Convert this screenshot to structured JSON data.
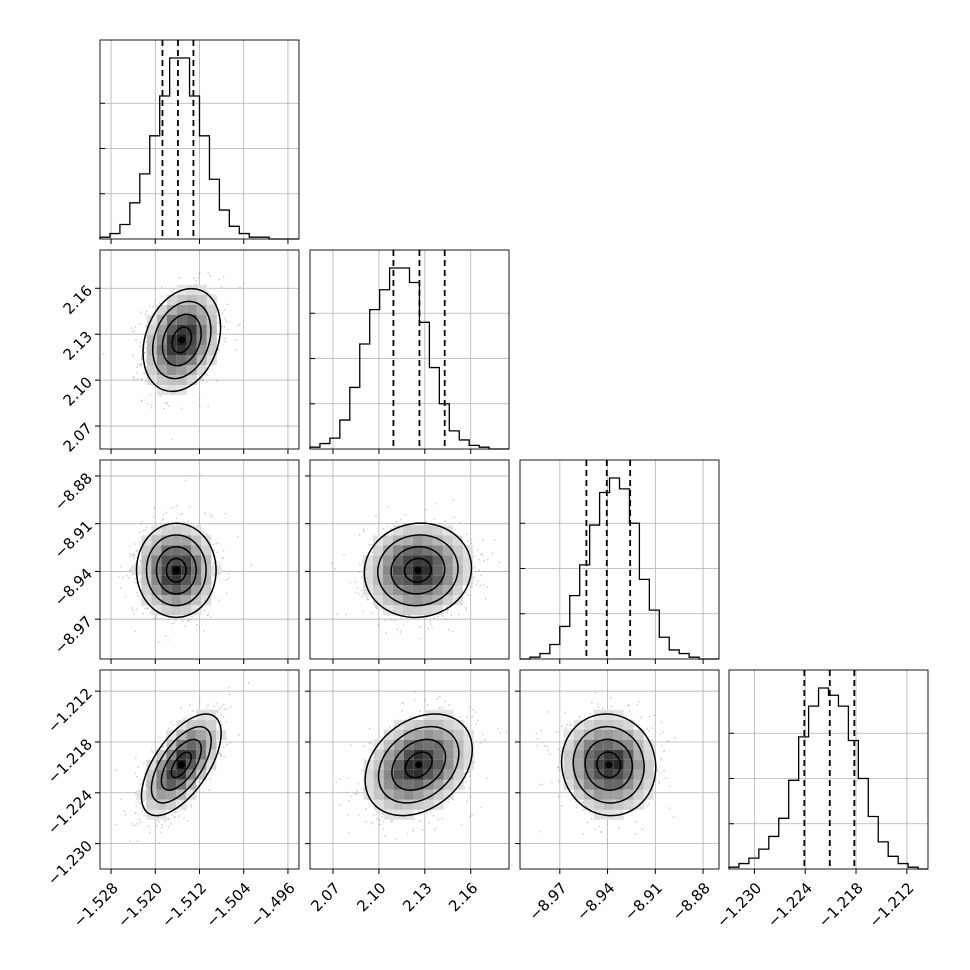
{
  "chart_data": {
    "type": "corner",
    "title": "",
    "parameters": [
      {
        "index": 0,
        "range": [
          -1.53,
          -1.494
        ],
        "ticks": [
          -1.528,
          -1.52,
          -1.512,
          -1.504,
          -1.496
        ],
        "tick_labels": [
          "−1.528",
          "−1.520",
          "−1.512",
          "−1.504",
          "−1.496"
        ],
        "quantiles": [
          -1.5187,
          -1.5159,
          -1.5131
        ],
        "hist_counts": [
          1,
          3,
          8,
          20,
          36,
          57,
          79,
          100,
          100,
          79,
          57,
          33,
          16,
          7,
          3,
          1,
          1,
          0,
          0,
          0
        ]
      },
      {
        "index": 1,
        "range": [
          2.055,
          2.185
        ],
        "ticks": [
          2.07,
          2.1,
          2.13,
          2.16
        ],
        "tick_labels": [
          "2.07",
          "2.10",
          "2.13",
          "2.16"
        ],
        "quantiles": [
          2.1095,
          2.1265,
          2.143
        ],
        "hist_counts": [
          1,
          3,
          6,
          16,
          34,
          58,
          77,
          88,
          100,
          100,
          92,
          70,
          45,
          25,
          10,
          5,
          2,
          1,
          0,
          0
        ]
      },
      {
        "index": 2,
        "range": [
          -8.995,
          -8.87
        ],
        "ticks": [
          -8.97,
          -8.94,
          -8.91,
          -8.88
        ],
        "tick_labels": [
          "−8.97",
          "−8.94",
          "−8.91",
          "−8.88"
        ],
        "quantiles": [
          -8.9533,
          -8.9405,
          -8.9258
        ],
        "hist_counts": [
          0,
          1,
          3,
          8,
          18,
          35,
          52,
          74,
          92,
          100,
          94,
          75,
          44,
          27,
          12,
          5,
          3,
          1,
          0,
          0
        ]
      },
      {
        "index": 3,
        "range": [
          -1.233,
          -1.2095
        ],
        "ticks": [
          -1.23,
          -1.224,
          -1.218,
          -1.212
        ],
        "tick_labels": [
          "−1.230",
          "−1.224",
          "−1.218",
          "−1.212"
        ],
        "quantiles": [
          -1.2241,
          -1.2211,
          -1.2182
        ],
        "hist_counts": [
          1,
          3,
          6,
          11,
          18,
          28,
          49,
          73,
          90,
          100,
          96,
          90,
          71,
          50,
          29,
          15,
          7,
          3,
          1,
          0
        ]
      }
    ],
    "pairs": [
      {
        "x": 0,
        "y": 1,
        "mean": [
          -1.5152,
          2.1262
        ],
        "sd": [
          0.0035,
          0.0168
        ],
        "rho": 0.25
      },
      {
        "x": 0,
        "y": 2,
        "mean": [
          -1.5162,
          -8.9393
        ],
        "sd": [
          0.0036,
          0.0148
        ],
        "rho": 0.0
      },
      {
        "x": 1,
        "y": 2,
        "mean": [
          2.1255,
          -8.9393
        ],
        "sd": [
          0.0175,
          0.0148
        ],
        "rho": 0.05
      },
      {
        "x": 0,
        "y": 3,
        "mean": [
          -1.5153,
          -1.2207
        ],
        "sd": [
          0.0036,
          0.003
        ],
        "rho": 0.62
      },
      {
        "x": 1,
        "y": 3,
        "mean": [
          2.126,
          -1.2207
        ],
        "sd": [
          0.0175,
          0.003
        ],
        "rho": 0.3
      },
      {
        "x": 2,
        "y": 3,
        "mean": [
          -8.9393,
          -1.2207
        ],
        "sd": [
          0.0148,
          0.003
        ],
        "rho": -0.05
      }
    ],
    "contour_levels_sigma": [
      0.5,
      1.0,
      1.5,
      2.0
    ],
    "grid": true,
    "xlabel": "",
    "ylabel": "",
    "colors": {
      "line": "#000000",
      "grid": "#b0b0b0",
      "frame": "#000000",
      "points": "#7a7a7a",
      "background": "#ffffff"
    }
  }
}
